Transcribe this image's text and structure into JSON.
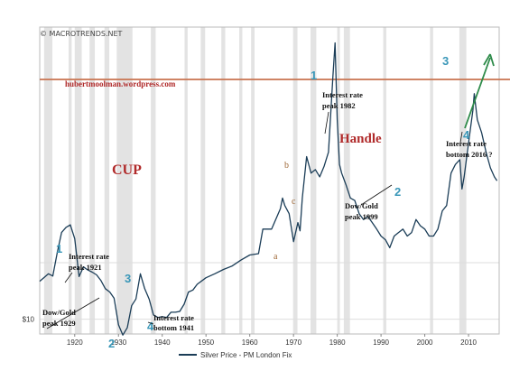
{
  "copyright": "© MACROTRENDS.NET",
  "colors": {
    "line": "#1b3d57",
    "recession": "#e3e3e3",
    "grid": "#dddddd",
    "resistance": "#c8734f",
    "blue_label": "#3a97b8",
    "brown_label": "#a06a3a",
    "red_text": "#b02a2a",
    "arrow": "#2e8b4a"
  },
  "chart_data": {
    "type": "line",
    "title": "",
    "xlabel": "",
    "ylabel": "",
    "xlim": [
      1912,
      2017
    ],
    "y_scale": "log",
    "yticks": [
      {
        "value": 10,
        "label": "$10"
      }
    ],
    "xticks": [
      {
        "value": 1920,
        "label": "1920"
      },
      {
        "value": 1930,
        "label": "1930"
      },
      {
        "value": 1940,
        "label": "1940"
      },
      {
        "value": 1950,
        "label": "1950"
      },
      {
        "value": 1960,
        "label": "1960"
      },
      {
        "value": 1970,
        "label": "1970"
      },
      {
        "value": 1980,
        "label": "1980"
      },
      {
        "value": 1990,
        "label": "1990"
      },
      {
        "value": 2000,
        "label": "2000"
      },
      {
        "value": 2010,
        "label": "2010"
      }
    ],
    "grid": true,
    "legend": {
      "position": "bottom-center",
      "entries": [
        "Silver Price - PM London Fix"
      ]
    },
    "recession_bands": [
      [
        1913.0,
        1914.9
      ],
      [
        1918.6,
        1919.3
      ],
      [
        1920.0,
        1921.6
      ],
      [
        1923.4,
        1924.6
      ],
      [
        1926.8,
        1927.9
      ],
      [
        1929.6,
        1933.2
      ],
      [
        1937.4,
        1938.5
      ],
      [
        1945.1,
        1945.8
      ],
      [
        1948.8,
        1949.8
      ],
      [
        1953.5,
        1954.4
      ],
      [
        1957.6,
        1958.3
      ],
      [
        1960.3,
        1961.1
      ],
      [
        1969.9,
        1970.9
      ],
      [
        1973.9,
        1975.2
      ],
      [
        1980.0,
        1980.6
      ],
      [
        1981.5,
        1982.9
      ],
      [
        1990.5,
        1991.2
      ],
      [
        2001.2,
        2001.9
      ],
      [
        2007.9,
        2009.5
      ]
    ],
    "series": [
      {
        "name": "Silver Price - PM London Fix",
        "x": [
          1912,
          1914,
          1915,
          1916,
          1917,
          1918,
          1919,
          1920,
          1921,
          1922,
          1923,
          1924,
          1925,
          1926,
          1927,
          1928,
          1929,
          1930,
          1931,
          1932,
          1933,
          1934,
          1935,
          1936,
          1937,
          1938,
          1939,
          1940,
          1941,
          1942,
          1943,
          1944,
          1945,
          1946,
          1947,
          1948,
          1950,
          1952,
          1954,
          1956,
          1958,
          1960,
          1962,
          1963,
          1965,
          1967,
          1967.5,
          1968,
          1969,
          1970,
          1971,
          1971.5,
          1972,
          1973,
          1974,
          1975,
          1976,
          1977,
          1978,
          1979,
          1979.5,
          1980,
          1980.5,
          1981,
          1982,
          1983,
          1984,
          1985,
          1986,
          1987,
          1988,
          1989,
          1990,
          1991,
          1992,
          1993,
          1994,
          1995,
          1996,
          1997,
          1998,
          1999,
          2000,
          2001,
          2002,
          2003,
          2004,
          2005,
          2006,
          2007,
          2008,
          2008.5,
          2009,
          2010,
          2011,
          2011.3,
          2012,
          2013,
          2014,
          2015,
          2015.9,
          2016.5
        ],
        "y": [
          15.2,
          16.5,
          16.1,
          20.8,
          26.0,
          27.5,
          28.3,
          24.3,
          16.0,
          17.8,
          17.2,
          16.8,
          16.3,
          15.3,
          14.0,
          13.5,
          12.6,
          9.4,
          8.4,
          9.1,
          11.6,
          12.5,
          16.5,
          14.0,
          12.5,
          10.5,
          10.2,
          10.3,
          10.2,
          10.8,
          10.8,
          10.9,
          11.8,
          13.5,
          13.8,
          14.7,
          15.8,
          16.5,
          17.3,
          18.0,
          19.2,
          20.3,
          20.6,
          27.0,
          27.0,
          33.8,
          38.0,
          35.0,
          32.0,
          23.5,
          29.0,
          26.5,
          38.0,
          60.0,
          50.0,
          52.0,
          48.0,
          54.0,
          63.0,
          145.0,
          210.0,
          90.0,
          55.0,
          50.0,
          44.0,
          38.0,
          37.0,
          32.0,
          30.0,
          31.0,
          29.0,
          27.0,
          25.0,
          24.0,
          22.0,
          25.0,
          26.0,
          27.0,
          25.0,
          26.0,
          30.0,
          28.0,
          27.0,
          25.0,
          25.0,
          27.0,
          33.0,
          35.0,
          50.0,
          55.0,
          58.0,
          42.0,
          48.0,
          70.0,
          100.0,
          120.0,
          90.0,
          78.0,
          63.0,
          53.0,
          48.0,
          46.0
        ]
      }
    ],
    "annotations": {
      "watermark_url": "hubertmoolman.wordpress.com",
      "cup": "CUP",
      "handle": "Handle",
      "wave_labels": [
        "1",
        "2",
        "3",
        "4",
        "1",
        "2",
        "3",
        "4"
      ],
      "abc_labels": [
        "a",
        "b",
        "c"
      ],
      "notes": [
        "Interest rate",
        "peak 1921",
        "Dow/Gold",
        "peak 1929",
        "Interest rate",
        "bottom 1941",
        "Interest rate",
        "peak 1982",
        "Dow/Gold",
        "peak 1999",
        "Interest rate",
        "bottom 2016 ?"
      ]
    }
  }
}
